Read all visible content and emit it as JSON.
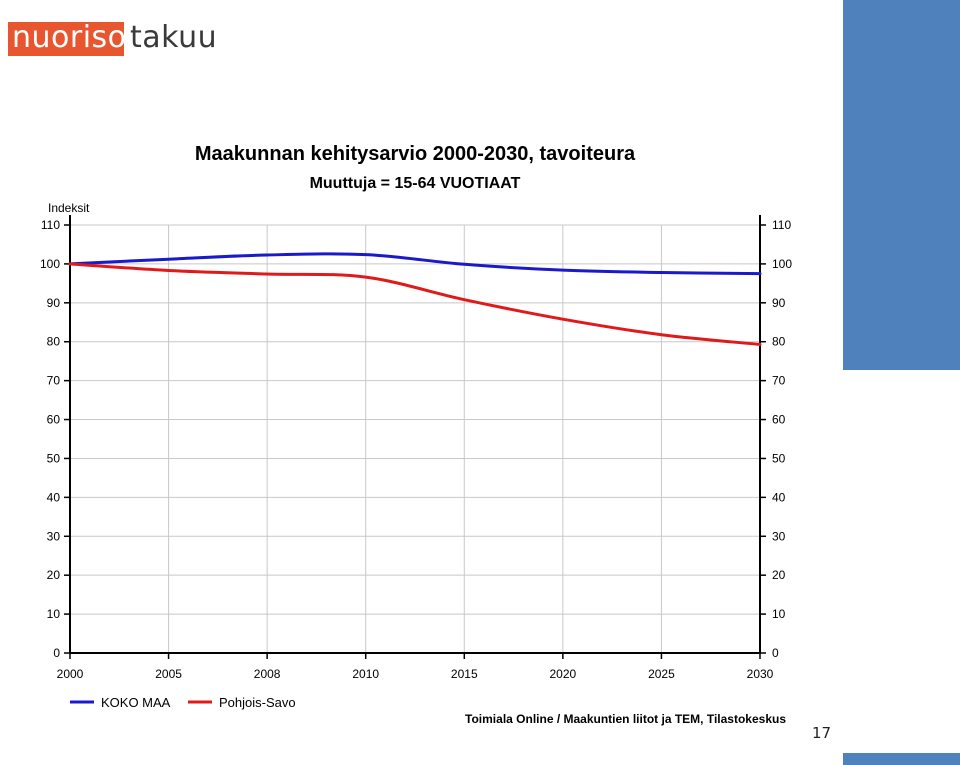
{
  "logo": {
    "part1": "nuoriso",
    "part2": "takuu"
  },
  "page_number": "17",
  "chart_data": {
    "type": "line",
    "title": "Maakunnan kehitysarvio 2000-2030, tavoiteura",
    "subtitle": "Muuttuja = 15-64 VUOTIAAT",
    "ylabel": "Indeksit",
    "xlabel": "",
    "categories": [
      "2000",
      "2005",
      "2008",
      "2010",
      "2015",
      "2020",
      "2025",
      "2030"
    ],
    "ylim": [
      0,
      110
    ],
    "yticks": [
      0,
      10,
      20,
      30,
      40,
      50,
      60,
      70,
      80,
      90,
      100,
      110
    ],
    "grid": true,
    "series": [
      {
        "name": "KOKO MAA",
        "color": "#1a1acc",
        "values": [
          100,
          101.2,
          102.3,
          102.4,
          99.9,
          98.4,
          97.8,
          97.5
        ]
      },
      {
        "name": "Pohjois-Savo",
        "color": "#e01a1a",
        "values": [
          100,
          98.3,
          97.4,
          96.6,
          90.8,
          85.8,
          81.8,
          79.3
        ]
      }
    ],
    "legend_position": "bottom-left",
    "source": "Toimiala Online / Maakuntien liitot ja TEM, Tilastokeskus"
  }
}
